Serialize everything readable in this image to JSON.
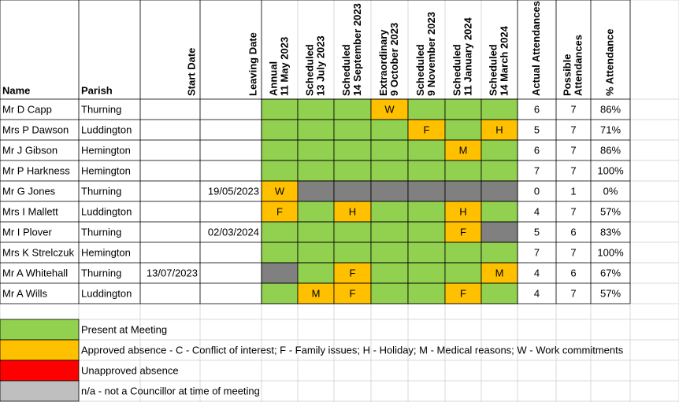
{
  "table": {
    "header": {
      "name": "Name",
      "parish": "Parish",
      "start_date": "Start Date",
      "leaving_date": "Leaving Date",
      "meetings": [
        [
          "Annual",
          "11 May 2023"
        ],
        [
          "Scheduled",
          "13 July 2023"
        ],
        [
          "Scheduled",
          "14 September 2023"
        ],
        [
          "Extraordinary",
          "9 October 2023"
        ],
        [
          "Scheduled",
          "9 November 2023"
        ],
        [
          "Scheduled",
          "11 January 2024"
        ],
        [
          "Scheduled",
          "14 March 2024"
        ]
      ],
      "actual": [
        "Actual Attendances"
      ],
      "possible": [
        "Possible",
        "Attendances"
      ],
      "pct": [
        "% Attendance"
      ]
    },
    "rows": [
      {
        "name": "Mr D Capp",
        "parish": "Thurning",
        "meetings": [
          {
            "color": "#92d050"
          },
          {
            "color": "#92d050"
          },
          {
            "color": "#92d050"
          },
          {
            "color": "#ffc000",
            "label": "W"
          },
          {
            "color": "#92d050"
          },
          {
            "color": "#92d050"
          },
          {
            "color": "#92d050"
          }
        ],
        "actual": 6,
        "possible": 7,
        "pct": "86%"
      },
      {
        "name": "Mrs P Dawson",
        "parish": "Luddington",
        "meetings": [
          {
            "color": "#92d050"
          },
          {
            "color": "#92d050"
          },
          {
            "color": "#92d050"
          },
          {
            "color": "#92d050"
          },
          {
            "color": "#ffc000",
            "label": "F"
          },
          {
            "color": "#92d050"
          },
          {
            "color": "#ffc000",
            "label": "H"
          }
        ],
        "actual": 5,
        "possible": 7,
        "pct": "71%"
      },
      {
        "name": "Mr J Gibson",
        "parish": "Hemington",
        "meetings": [
          {
            "color": "#92d050"
          },
          {
            "color": "#92d050"
          },
          {
            "color": "#92d050"
          },
          {
            "color": "#92d050"
          },
          {
            "color": "#92d050"
          },
          {
            "color": "#ffc000",
            "label": "M"
          },
          {
            "color": "#92d050"
          }
        ],
        "actual": 6,
        "possible": 7,
        "pct": "86%"
      },
      {
        "name": "Mr P Harkness",
        "parish": "Hemington",
        "meetings": [
          {
            "color": "#92d050"
          },
          {
            "color": "#92d050"
          },
          {
            "color": "#92d050"
          },
          {
            "color": "#92d050"
          },
          {
            "color": "#92d050"
          },
          {
            "color": "#92d050"
          },
          {
            "color": "#92d050"
          }
        ],
        "actual": 7,
        "possible": 7,
        "pct": "100%"
      },
      {
        "name": "Mr G Jones",
        "parish": "Thurning",
        "leaving_date": "19/05/2023",
        "meetings": [
          {
            "color": "#ffc000",
            "label": "W"
          },
          {
            "color": "#808080"
          },
          {
            "color": "#808080"
          },
          {
            "color": "#808080"
          },
          {
            "color": "#808080"
          },
          {
            "color": "#808080"
          },
          {
            "color": "#808080"
          }
        ],
        "actual": 0,
        "possible": 1,
        "pct": "0%"
      },
      {
        "name": "Mrs I Mallett",
        "parish": "Luddington",
        "meetings": [
          {
            "color": "#ffc000",
            "label": "F"
          },
          {
            "color": "#92d050"
          },
          {
            "color": "#ffc000",
            "label": "H"
          },
          {
            "color": "#92d050"
          },
          {
            "color": "#92d050"
          },
          {
            "color": "#ffc000",
            "label": "H"
          },
          {
            "color": "#92d050"
          }
        ],
        "actual": 4,
        "possible": 7,
        "pct": "57%"
      },
      {
        "name": "Mr I Plover",
        "parish": "Thurning",
        "leaving_date": "02/03/2024",
        "meetings": [
          {
            "color": "#92d050"
          },
          {
            "color": "#92d050"
          },
          {
            "color": "#92d050"
          },
          {
            "color": "#92d050"
          },
          {
            "color": "#92d050"
          },
          {
            "color": "#ffc000",
            "label": "F"
          },
          {
            "color": "#808080"
          }
        ],
        "actual": 5,
        "possible": 6,
        "pct": "83%"
      },
      {
        "name": "Mrs K Strelczuk",
        "parish": "Hemington",
        "meetings": [
          {
            "color": "#92d050"
          },
          {
            "color": "#92d050"
          },
          {
            "color": "#92d050"
          },
          {
            "color": "#92d050"
          },
          {
            "color": "#92d050"
          },
          {
            "color": "#92d050"
          },
          {
            "color": "#92d050"
          }
        ],
        "actual": 7,
        "possible": 7,
        "pct": "100%"
      },
      {
        "name": "Mr A Whitehall",
        "parish": "Thurning",
        "start_date": "13/07/2023",
        "meetings": [
          {
            "color": "#808080"
          },
          {
            "color": "#92d050"
          },
          {
            "color": "#ffc000",
            "label": "F"
          },
          {
            "color": "#92d050"
          },
          {
            "color": "#92d050"
          },
          {
            "color": "#92d050"
          },
          {
            "color": "#ffc000",
            "label": "M"
          }
        ],
        "actual": 4,
        "possible": 6,
        "pct": "67%"
      },
      {
        "name": "Mr A Wills",
        "parish": "Luddington",
        "meetings": [
          {
            "color": "#92d050"
          },
          {
            "color": "#ffc000",
            "label": "M"
          },
          {
            "color": "#ffc000",
            "label": "F"
          },
          {
            "color": "#92d050"
          },
          {
            "color": "#92d050"
          },
          {
            "color": "#ffc000",
            "label": "F"
          },
          {
            "color": "#92d050"
          }
        ],
        "actual": 4,
        "possible": 7,
        "pct": "57%"
      }
    ]
  },
  "legend": [
    {
      "color": "#92d050",
      "label": "Present at Meeting"
    },
    {
      "color": "#ffc000",
      "label": "Approved absence - C - Conflict of interest; F - Family issues; H - Holiday; M - Medical reasons; W - Work commitments"
    },
    {
      "color": "#ff0000",
      "label": "Unapproved absence"
    },
    {
      "color": "#bfbfbf",
      "label": "n/a - not a Councillor at time of meeting"
    }
  ]
}
